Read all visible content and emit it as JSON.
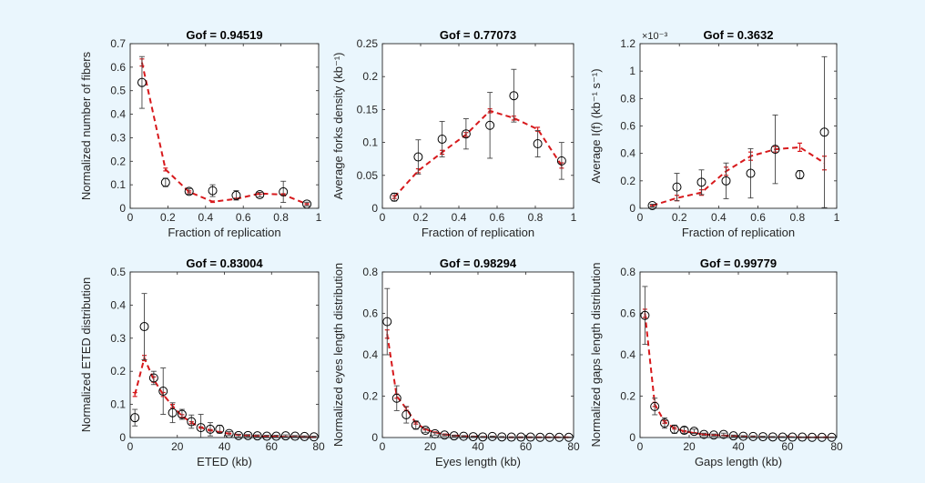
{
  "colors": {
    "background": "#eaf6fd",
    "panel": "#ffffff",
    "model": "#d7191c",
    "data": "#000000",
    "errorbar": "#444444"
  },
  "chart_data": [
    {
      "type": "line",
      "title": "Gof = 0.94519",
      "xlabel": "Fraction of replication",
      "ylabel": "Normalized number of fibers",
      "xlim": [
        0,
        1
      ],
      "ylim": [
        0,
        0.7
      ],
      "xticks": [
        0,
        0.2,
        0.4,
        0.6,
        0.8,
        1
      ],
      "xticklabels": [
        "0",
        "0.2",
        "0.4",
        "0.6",
        "0.8",
        "1"
      ],
      "yticks": [
        0,
        0.1,
        0.2,
        0.3,
        0.4,
        0.5,
        0.6,
        0.7
      ],
      "yticklabels": [
        "0",
        "0.1",
        "0.2",
        "0.3",
        "0.4",
        "0.5",
        "0.6",
        "0.7"
      ],
      "exponent": "",
      "series": [
        {
          "role": "model",
          "x": [
            0.0625,
            0.1875,
            0.3125,
            0.4375,
            0.5625,
            0.6875,
            0.8125,
            0.9375
          ],
          "y": [
            0.62,
            0.165,
            0.07,
            0.028,
            0.04,
            0.063,
            0.058,
            0.018
          ],
          "err": [
            0.015,
            0.006,
            0.004,
            0.003,
            0.003,
            0.004,
            0.004,
            0.002
          ]
        },
        {
          "role": "data",
          "x": [
            0.0625,
            0.1875,
            0.3125,
            0.4375,
            0.5625,
            0.6875,
            0.8125,
            0.9375
          ],
          "y": [
            0.535,
            0.11,
            0.072,
            0.075,
            0.055,
            0.058,
            0.07,
            0.018
          ],
          "err": [
            0.11,
            0.018,
            0.012,
            0.025,
            0.02,
            0.01,
            0.045,
            0.008
          ]
        }
      ]
    },
    {
      "type": "line",
      "title": "Gof = 0.77073",
      "xlabel": "Fraction of replication",
      "ylabel": "Average forks density (kb⁻¹)",
      "xlim": [
        0,
        1
      ],
      "ylim": [
        0,
        0.25
      ],
      "xticks": [
        0,
        0.2,
        0.4,
        0.6,
        0.8,
        1
      ],
      "xticklabels": [
        "0",
        "0.2",
        "0.4",
        "0.6",
        "0.8",
        "1"
      ],
      "yticks": [
        0,
        0.05,
        0.1,
        0.15,
        0.2,
        0.25
      ],
      "yticklabels": [
        "0",
        "0.05",
        "0.1",
        "0.15",
        "0.2",
        "0.25"
      ],
      "exponent": "",
      "series": [
        {
          "role": "model",
          "x": [
            0.0625,
            0.1875,
            0.3125,
            0.4375,
            0.5625,
            0.6875,
            0.8125,
            0.9375
          ],
          "y": [
            0.017,
            0.057,
            0.085,
            0.112,
            0.148,
            0.137,
            0.12,
            0.065
          ],
          "err": [
            0.002,
            0.003,
            0.003,
            0.003,
            0.003,
            0.003,
            0.003,
            0.004
          ]
        },
        {
          "role": "data",
          "x": [
            0.0625,
            0.1875,
            0.3125,
            0.4375,
            0.5625,
            0.6875,
            0.8125,
            0.9375
          ],
          "y": [
            0.017,
            0.078,
            0.105,
            0.113,
            0.126,
            0.171,
            0.098,
            0.072
          ],
          "err": [
            0.006,
            0.026,
            0.027,
            0.023,
            0.05,
            0.04,
            0.02,
            0.028
          ]
        }
      ]
    },
    {
      "type": "line",
      "title": "Gof = 0.3632",
      "xlabel": "Fraction of replication",
      "ylabel": "Average I(f) (kb⁻¹ s⁻¹)",
      "xlim": [
        0,
        1
      ],
      "ylim": [
        0,
        1.2
      ],
      "xticks": [
        0,
        0.2,
        0.4,
        0.6,
        0.8,
        1
      ],
      "xticklabels": [
        "0",
        "0.2",
        "0.4",
        "0.6",
        "0.8",
        "1"
      ],
      "yticks": [
        0,
        0.2,
        0.4,
        0.6,
        0.8,
        1,
        1.2
      ],
      "yticklabels": [
        "0",
        "0.2",
        "0.4",
        "0.6",
        "0.8",
        "1",
        "1.2"
      ],
      "exponent": "×10⁻³",
      "series": [
        {
          "role": "model",
          "x": [
            0.0625,
            0.1875,
            0.3125,
            0.4375,
            0.5625,
            0.6875,
            0.8125,
            0.9375
          ],
          "y": [
            0.02,
            0.075,
            0.115,
            0.27,
            0.38,
            0.43,
            0.445,
            0.33
          ],
          "err": [
            0.005,
            0.02,
            0.02,
            0.03,
            0.03,
            0.02,
            0.03,
            0.05
          ]
        },
        {
          "role": "data",
          "x": [
            0.0625,
            0.1875,
            0.3125,
            0.4375,
            0.5625,
            0.6875,
            0.8125,
            0.9375
          ],
          "y": [
            0.02,
            0.155,
            0.19,
            0.2,
            0.255,
            0.43,
            0.245,
            0.555
          ],
          "err": [
            0.01,
            0.1,
            0.09,
            0.13,
            0.18,
            0.25,
            0.03,
            0.55
          ]
        }
      ]
    },
    {
      "type": "line",
      "title": "Gof = 0.83004",
      "xlabel": "ETED (kb)",
      "ylabel": "Normalized ETED distribution",
      "xlim": [
        0,
        80
      ],
      "ylim": [
        0,
        0.5
      ],
      "xticks": [
        0,
        20,
        40,
        60,
        80
      ],
      "xticklabels": [
        "0",
        "20",
        "40",
        "60",
        "80"
      ],
      "yticks": [
        0,
        0.1,
        0.2,
        0.3,
        0.4,
        0.5
      ],
      "yticklabels": [
        "0",
        "0.1",
        "0.2",
        "0.3",
        "0.4",
        "0.5"
      ],
      "exponent": "",
      "series": [
        {
          "role": "model",
          "x": [
            2,
            6,
            10,
            14,
            18,
            22,
            26,
            30,
            34,
            38,
            42,
            46,
            50,
            54,
            58,
            62,
            66,
            70,
            74,
            78
          ],
          "y": [
            0.13,
            0.24,
            0.175,
            0.13,
            0.095,
            0.065,
            0.045,
            0.03,
            0.022,
            0.016,
            0.012,
            0.008,
            0.006,
            0.004,
            0.003,
            0.003,
            0.002,
            0.002,
            0.001,
            0.001
          ],
          "err": [
            0.006,
            0.008,
            0.008,
            0.006,
            0.005,
            0.004,
            0.003,
            0.002,
            0.002,
            0.002,
            0.001,
            0.001,
            0.001,
            0.001,
            0.001,
            0.001,
            0.001,
            0.001,
            0.001,
            0.001
          ]
        },
        {
          "role": "data",
          "x": [
            2,
            6,
            10,
            14,
            18,
            22,
            26,
            30,
            34,
            38,
            42,
            46,
            50,
            54,
            58,
            62,
            66,
            70,
            74,
            78
          ],
          "y": [
            0.06,
            0.335,
            0.18,
            0.14,
            0.075,
            0.07,
            0.048,
            0.03,
            0.025,
            0.025,
            0.012,
            0.006,
            0.006,
            0.005,
            0.004,
            0.004,
            0.005,
            0.004,
            0.003,
            0.002
          ],
          "err": [
            0.025,
            0.1,
            0.02,
            0.07,
            0.03,
            0.015,
            0.02,
            0.04,
            0.02,
            0.012,
            0.006,
            0.004,
            0.003,
            0.003,
            0.003,
            0.003,
            0.003,
            0.002,
            0.002,
            0.002
          ]
        }
      ]
    },
    {
      "type": "line",
      "title": "Gof = 0.98294",
      "xlabel": "Eyes length (kb)",
      "ylabel": "Normalized eyes length distribution",
      "xlim": [
        0,
        80
      ],
      "ylim": [
        0,
        0.8
      ],
      "xticks": [
        0,
        20,
        40,
        60,
        80
      ],
      "xticklabels": [
        "0",
        "20",
        "40",
        "60",
        "80"
      ],
      "yticks": [
        0,
        0.2,
        0.4,
        0.6,
        0.8
      ],
      "yticklabels": [
        "0",
        "0.2",
        "0.4",
        "0.6",
        "0.8"
      ],
      "exponent": "",
      "series": [
        {
          "role": "model",
          "x": [
            2,
            6,
            10,
            14,
            18,
            22,
            26,
            30,
            34,
            38,
            42,
            46,
            50,
            54,
            58,
            62,
            66,
            70,
            74,
            78
          ],
          "y": [
            0.5,
            0.2,
            0.14,
            0.07,
            0.04,
            0.025,
            0.015,
            0.01,
            0.007,
            0.005,
            0.003,
            0.002,
            0.002,
            0.001,
            0.001,
            0.001,
            0.001,
            0.001,
            0.001,
            0.001
          ],
          "err": [
            0.02,
            0.01,
            0.008,
            0.005,
            0.003,
            0.002,
            0.002,
            0.001,
            0.001,
            0.001,
            0.001,
            0.001,
            0.001,
            0.001,
            0.001,
            0.001,
            0.001,
            0.001,
            0.001,
            0.001
          ]
        },
        {
          "role": "data",
          "x": [
            2,
            6,
            10,
            14,
            18,
            22,
            26,
            30,
            34,
            38,
            42,
            46,
            50,
            54,
            58,
            62,
            66,
            70,
            74,
            78
          ],
          "y": [
            0.56,
            0.19,
            0.11,
            0.06,
            0.035,
            0.018,
            0.012,
            0.008,
            0.006,
            0.004,
            0.003,
            0.005,
            0.003,
            0.002,
            0.002,
            0.002,
            0.001,
            0.001,
            0.001,
            0.001
          ],
          "err": [
            0.16,
            0.06,
            0.04,
            0.02,
            0.01,
            0.006,
            0.004,
            0.003,
            0.003,
            0.002,
            0.002,
            0.002,
            0.002,
            0.001,
            0.001,
            0.001,
            0.001,
            0.001,
            0.001,
            0.001
          ]
        }
      ]
    },
    {
      "type": "line",
      "title": "Gof = 0.99779",
      "xlabel": "Gaps length (kb)",
      "ylabel": "Normalized gaps length distribution",
      "xlim": [
        0,
        80
      ],
      "ylim": [
        0,
        0.8
      ],
      "xticks": [
        0,
        20,
        40,
        60,
        80
      ],
      "xticklabels": [
        "0",
        "20",
        "40",
        "60",
        "80"
      ],
      "yticks": [
        0,
        0.2,
        0.4,
        0.6,
        0.8
      ],
      "yticklabels": [
        "0",
        "0.2",
        "0.4",
        "0.6",
        "0.8"
      ],
      "exponent": "",
      "series": [
        {
          "role": "model",
          "x": [
            2,
            6,
            10,
            14,
            18,
            22,
            26,
            30,
            34,
            38,
            42,
            46,
            50,
            54,
            58,
            62,
            66,
            70,
            74,
            78
          ],
          "y": [
            0.6,
            0.16,
            0.075,
            0.045,
            0.03,
            0.022,
            0.015,
            0.012,
            0.01,
            0.007,
            0.005,
            0.004,
            0.003,
            0.002,
            0.002,
            0.002,
            0.001,
            0.001,
            0.001,
            0.001
          ],
          "err": [
            0.02,
            0.01,
            0.006,
            0.004,
            0.003,
            0.002,
            0.002,
            0.001,
            0.001,
            0.001,
            0.001,
            0.001,
            0.001,
            0.001,
            0.001,
            0.001,
            0.001,
            0.001,
            0.001,
            0.001
          ]
        },
        {
          "role": "data",
          "x": [
            2,
            6,
            10,
            14,
            18,
            22,
            26,
            30,
            34,
            38,
            42,
            46,
            50,
            54,
            58,
            62,
            66,
            70,
            74,
            78
          ],
          "y": [
            0.59,
            0.15,
            0.07,
            0.04,
            0.035,
            0.03,
            0.015,
            0.012,
            0.015,
            0.008,
            0.006,
            0.005,
            0.004,
            0.003,
            0.002,
            0.002,
            0.002,
            0.001,
            0.001,
            0.001
          ],
          "err": [
            0.14,
            0.04,
            0.025,
            0.02,
            0.015,
            0.01,
            0.006,
            0.005,
            0.006,
            0.004,
            0.003,
            0.003,
            0.002,
            0.002,
            0.002,
            0.001,
            0.001,
            0.001,
            0.001,
            0.001
          ]
        }
      ]
    }
  ]
}
